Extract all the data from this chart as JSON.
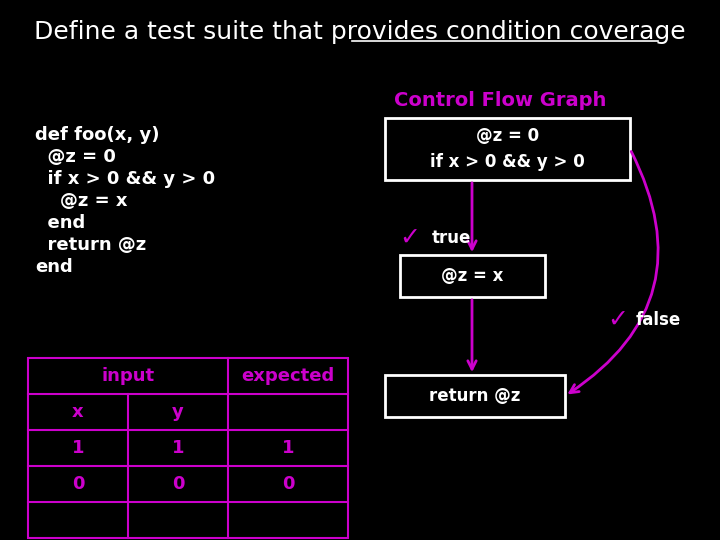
{
  "bg_color": "#000000",
  "title_normal": "Define a test suite that provides ",
  "title_underline": "condition coverage",
  "title_color": "#ffffff",
  "title_fontsize": 18,
  "cfgraph_label": "Control Flow Graph",
  "cfgraph_label_color": "#cc00cc",
  "code_lines": [
    "def foo(x, y)",
    "  @z = 0",
    "  if x > 0 && y > 0",
    "    @z = x",
    "  end",
    "  return @z",
    "end"
  ],
  "code_color": "#ffffff",
  "code_fontsize": 13,
  "box1_line1": "@z = 0",
  "box1_line2": "if x > 0 && y > 0",
  "box2_text": "@z = x",
  "box3_text": "return @z",
  "box_bg": "#000000",
  "box_border": "#ffffff",
  "box_text_color": "#ffffff",
  "arrow_color": "#cc00cc",
  "true_label": "true",
  "false_label": "false",
  "label_color": "#ffffff",
  "checkmark_color": "#cc00cc",
  "table_border_color": "#cc00cc",
  "table_data_color": "#cc00cc",
  "table_bg": "#000000",
  "table_rows": [
    [
      "1",
      "1",
      "1"
    ],
    [
      "0",
      "0",
      "0"
    ],
    [
      "",
      "",
      ""
    ]
  ],
  "input_label": "input",
  "expected_label": "expected",
  "col_header_x": "x",
  "col_header_y": "y"
}
